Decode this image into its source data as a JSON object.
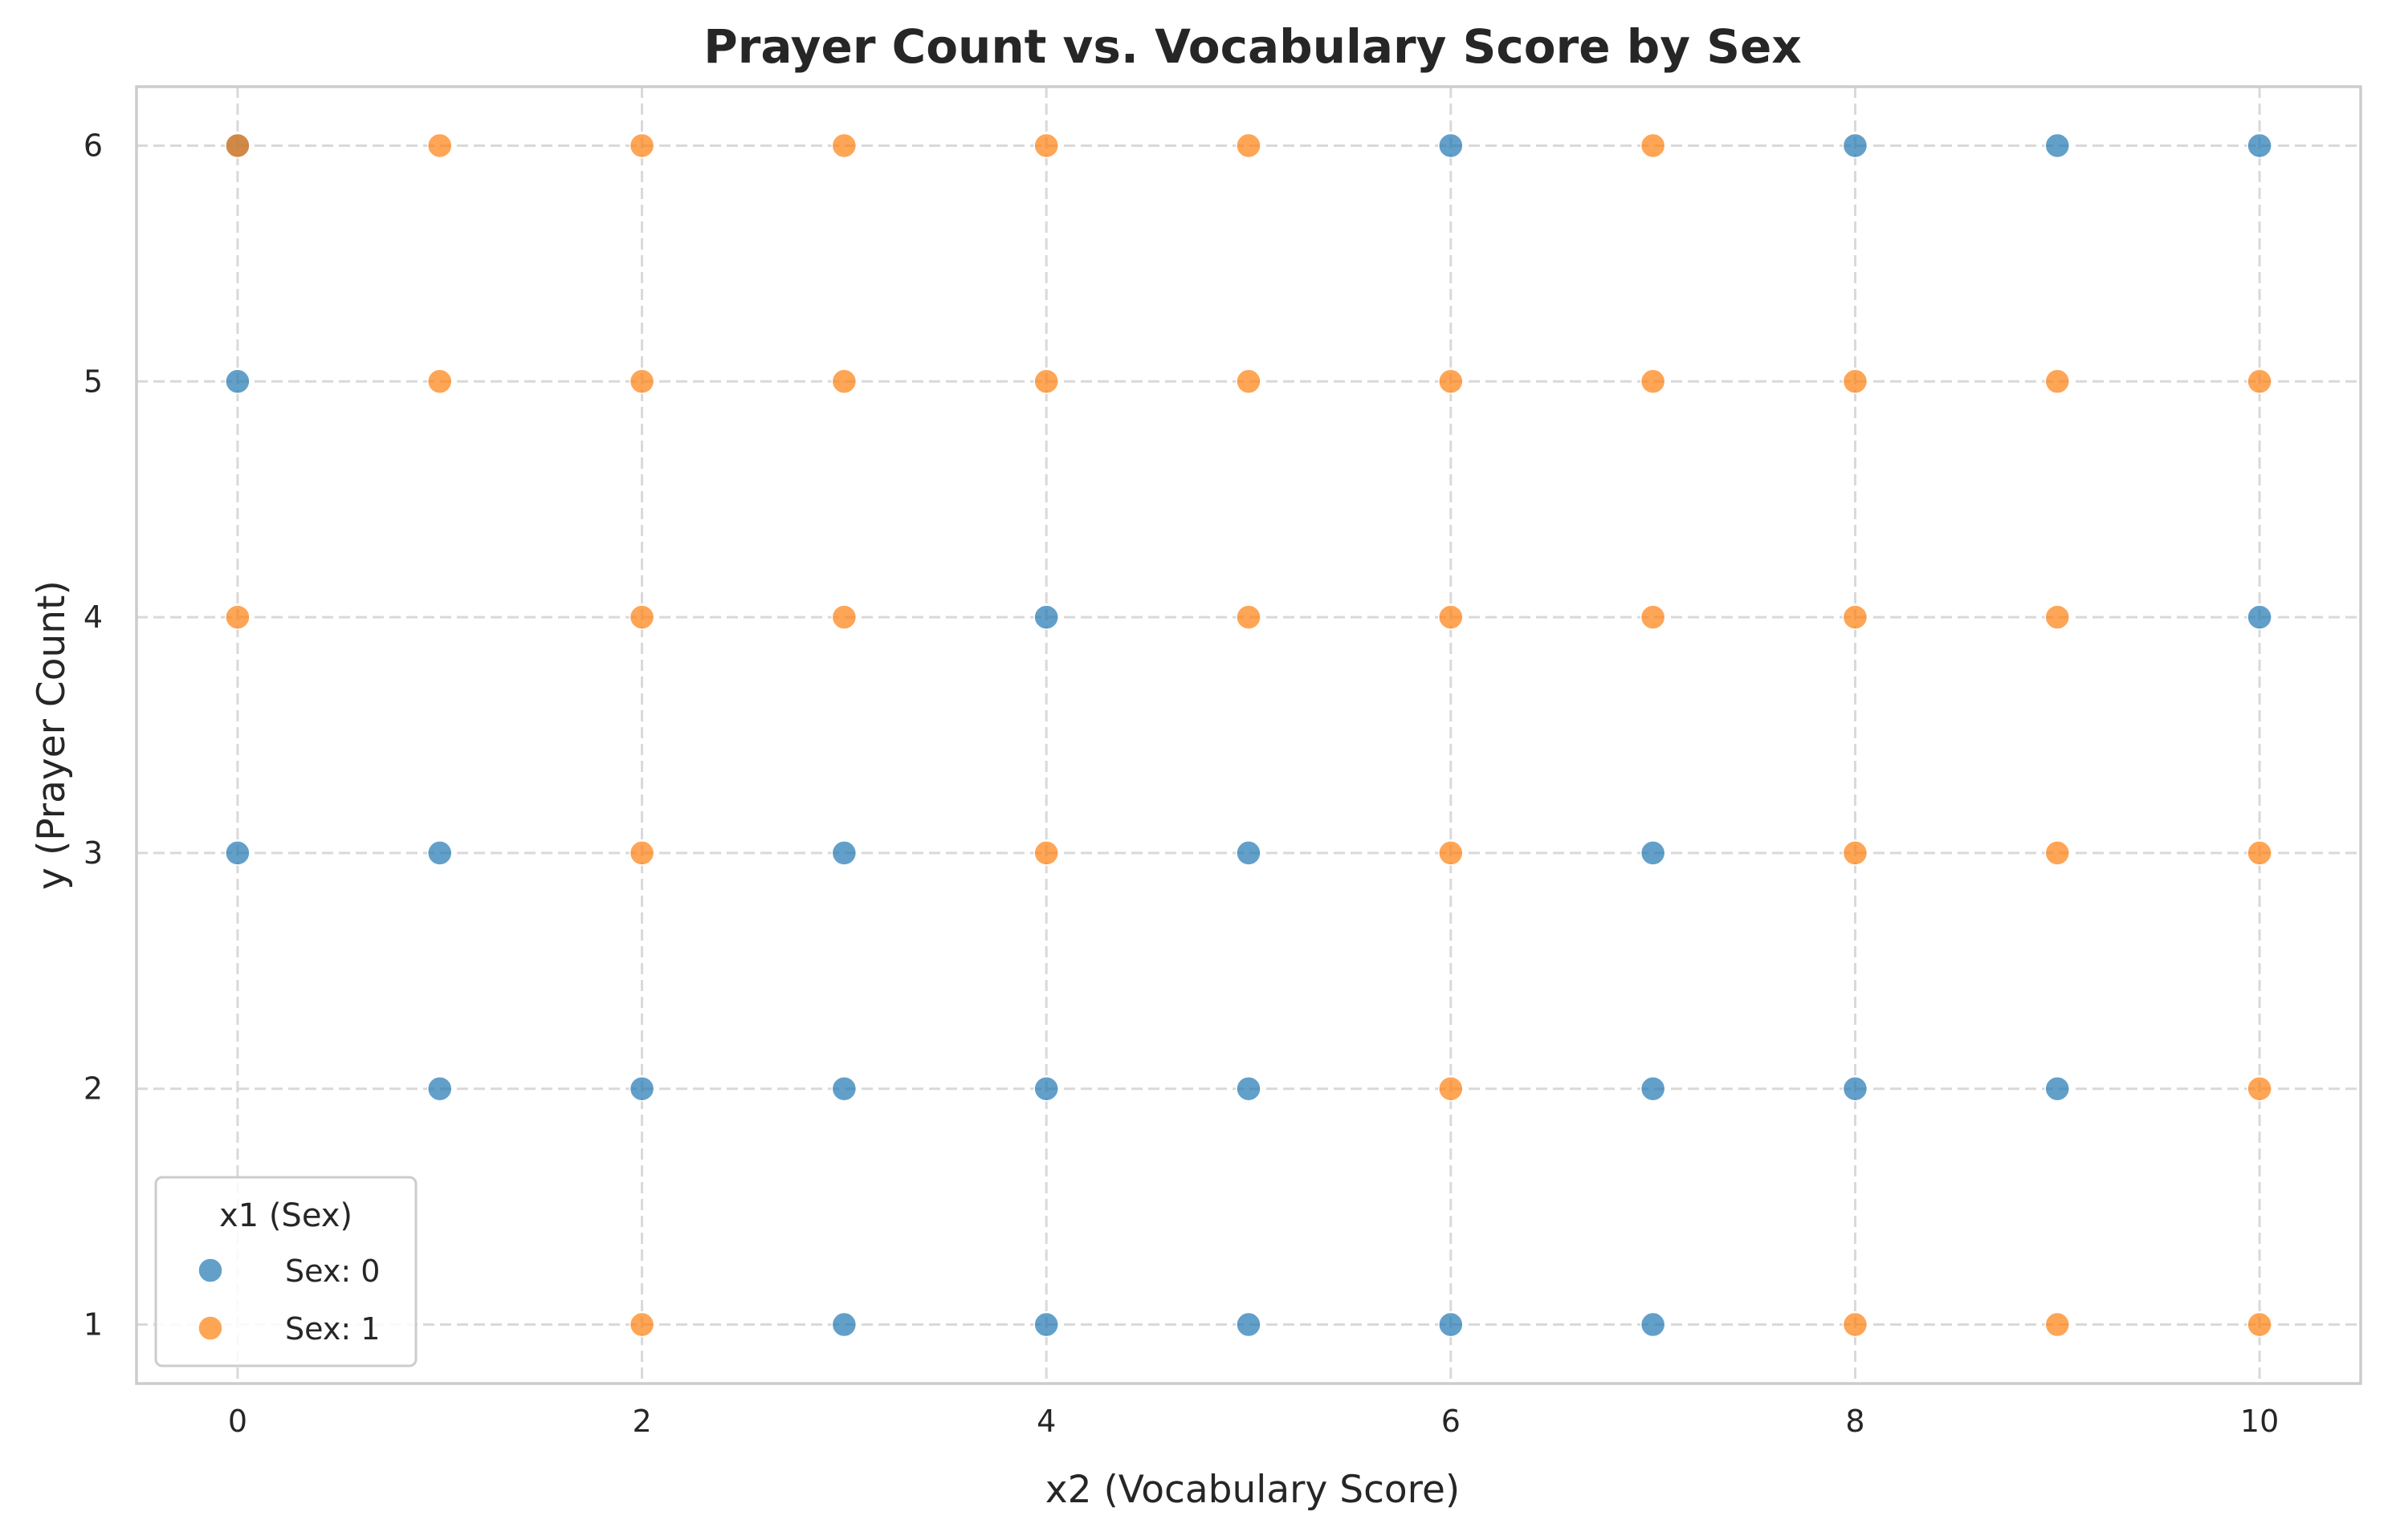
{
  "chart_data": {
    "type": "scatter",
    "title": "Prayer Count vs. Vocabulary Score by Sex",
    "xlabel": "x2 (Vocabulary Score)",
    "ylabel": "y (Prayer Count)",
    "xlim": [
      -0.5,
      10.5
    ],
    "ylim": [
      0.75,
      6.25
    ],
    "xticks": [
      0,
      2,
      4,
      6,
      8,
      10
    ],
    "yticks": [
      1,
      2,
      3,
      4,
      5,
      6
    ],
    "grid": true,
    "legend": {
      "title": "x1 (Sex)",
      "placement": "bottom-left",
      "entries": [
        "Sex: 0",
        "Sex: 1"
      ]
    },
    "series": [
      {
        "name": "Sex: 0",
        "color": "#1f77b4",
        "points": [
          [
            0,
            6
          ],
          [
            6,
            6
          ],
          [
            8,
            6
          ],
          [
            9,
            6
          ],
          [
            10,
            6
          ],
          [
            0,
            5
          ],
          [
            4,
            4
          ],
          [
            10,
            4
          ],
          [
            0,
            3
          ],
          [
            1,
            3
          ],
          [
            3,
            3
          ],
          [
            5,
            3
          ],
          [
            7,
            3
          ],
          [
            1,
            2
          ],
          [
            2,
            2
          ],
          [
            3,
            2
          ],
          [
            4,
            2
          ],
          [
            5,
            2
          ],
          [
            7,
            2
          ],
          [
            8,
            2
          ],
          [
            9,
            2
          ],
          [
            3,
            1
          ],
          [
            4,
            1
          ],
          [
            5,
            1
          ],
          [
            6,
            1
          ],
          [
            7,
            1
          ]
        ]
      },
      {
        "name": "Sex: 1",
        "color": "#ff7f0e",
        "points": [
          [
            0,
            6
          ],
          [
            1,
            6
          ],
          [
            2,
            6
          ],
          [
            3,
            6
          ],
          [
            4,
            6
          ],
          [
            5,
            6
          ],
          [
            7,
            6
          ],
          [
            1,
            5
          ],
          [
            2,
            5
          ],
          [
            3,
            5
          ],
          [
            4,
            5
          ],
          [
            5,
            5
          ],
          [
            6,
            5
          ],
          [
            7,
            5
          ],
          [
            8,
            5
          ],
          [
            9,
            5
          ],
          [
            10,
            5
          ],
          [
            0,
            4
          ],
          [
            2,
            4
          ],
          [
            3,
            4
          ],
          [
            5,
            4
          ],
          [
            6,
            4
          ],
          [
            7,
            4
          ],
          [
            8,
            4
          ],
          [
            9,
            4
          ],
          [
            2,
            3
          ],
          [
            4,
            3
          ],
          [
            6,
            3
          ],
          [
            8,
            3
          ],
          [
            9,
            3
          ],
          [
            10,
            3
          ],
          [
            6,
            2
          ],
          [
            10,
            2
          ],
          [
            2,
            1
          ],
          [
            8,
            1
          ],
          [
            9,
            1
          ],
          [
            10,
            1
          ]
        ]
      }
    ]
  }
}
